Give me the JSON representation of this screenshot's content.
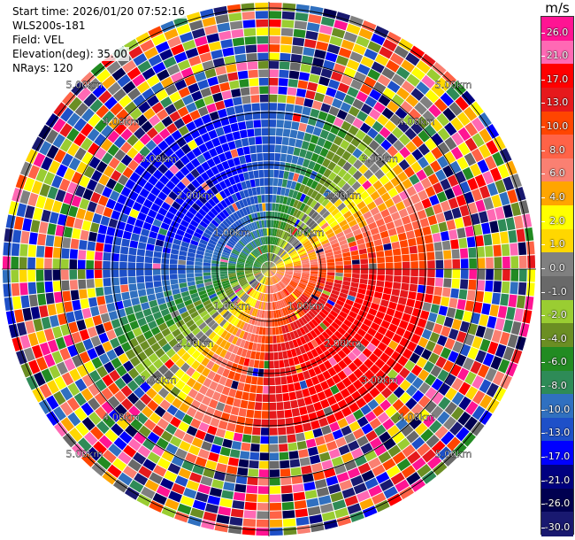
{
  "header": {
    "start_time": "Start time: 2026/01/20 07:52:16",
    "instrument": "WLS200s-181",
    "field": "Field: VEL",
    "elevation": "Elevation(deg): 35.00",
    "nrays": "NRays: 120"
  },
  "colorbar": {
    "unit": "m/s",
    "labels": [
      "26.0",
      "21.0",
      "17.0",
      "13.0",
      "10.0",
      "8.0",
      "6.0",
      "4.0",
      "2.0",
      "1.0",
      "0.0",
      "-1.0",
      "-2.0",
      "-4.0",
      "-6.0",
      "-8.0",
      "-10.0",
      "-13.0",
      "-17.0",
      "-21.0",
      "-26.0",
      "-30.0"
    ],
    "colors": [
      "#ff1493",
      "#ff69b4",
      "#ff0000",
      "#e6191c",
      "#ff4500",
      "#ff6347",
      "#fa8072",
      "#ffa500",
      "#ffff00",
      "#ffd700",
      "#808080",
      "#696969",
      "#9acd32",
      "#6b8e23",
      "#228b22",
      "#2e8b57",
      "#3070c0",
      "#1e50c8",
      "#0000ff",
      "#000080",
      "#000050",
      "#191970"
    ]
  },
  "chart_data": {
    "type": "heatmap",
    "projection": "polar (PPI)",
    "field": "VEL",
    "units": "m/s",
    "nrays": 120,
    "elevation_deg": 35.0,
    "range_rings_km": [
      "1.00km",
      "2.00km",
      "3.00km",
      "4.00km",
      "5.00km"
    ],
    "range_ring_values_km": [
      1,
      2,
      3,
      4,
      5
    ],
    "color_range": [
      -30,
      26
    ],
    "pattern_description_free": "noisy outer gates; near-field dipole: blue (receding toward west/northwest), red (approaching toward south/east), yellow/green transition bands"
  }
}
